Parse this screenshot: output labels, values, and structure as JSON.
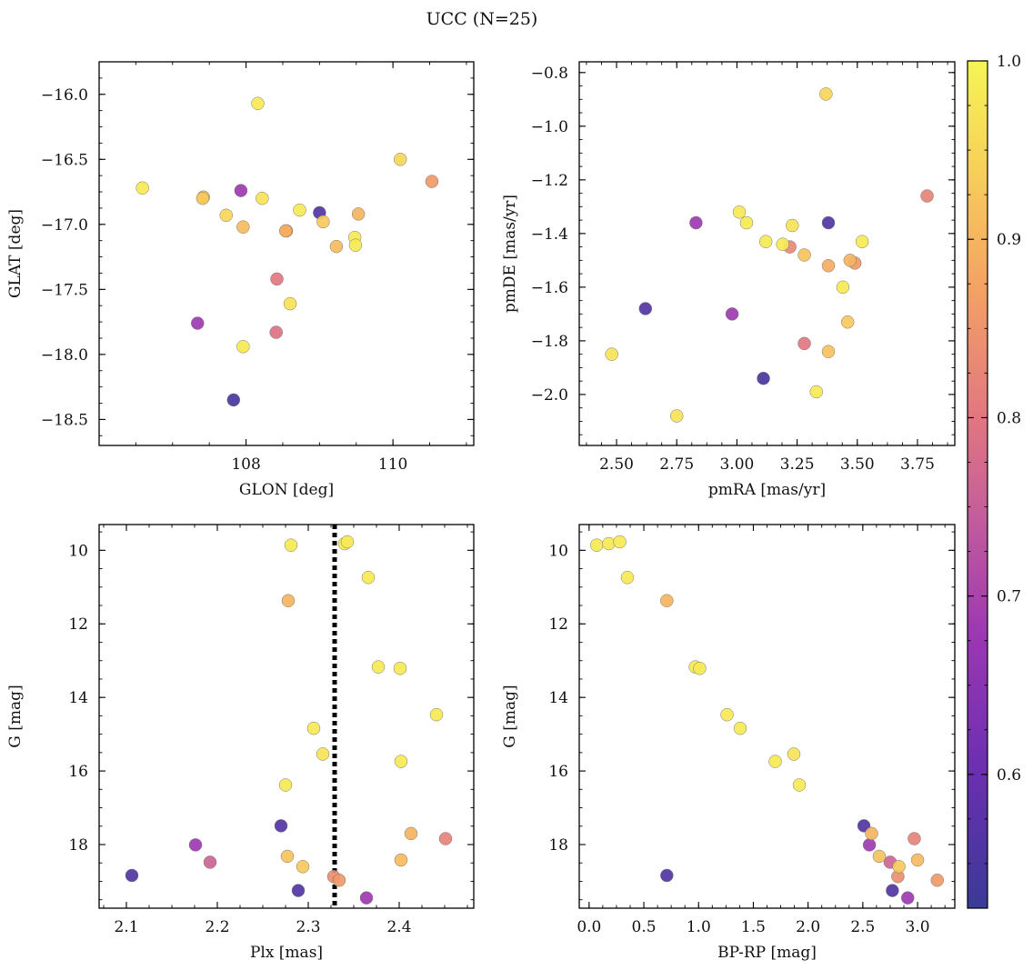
{
  "figure_title": "UCC (N=25)",
  "colorbar": {
    "min": 0.525,
    "max": 1.0,
    "ticks": [
      0.6,
      0.7,
      0.8,
      0.9,
      1.0
    ],
    "tick_labels": [
      "0.6",
      "0.7",
      "0.8",
      "0.9",
      "1.0"
    ],
    "colormap": "plasma"
  },
  "chart_data": [
    {
      "type": "scatter",
      "xlabel": "GLON [deg]",
      "ylabel": "GLAT [deg]",
      "xlim": [
        106.0,
        111.1
      ],
      "ylim": [
        -18.7,
        -15.75
      ],
      "x_ticks": [
        108,
        110
      ],
      "x_tick_labels": [
        "108",
        "110"
      ],
      "y_ticks": [
        -16.0,
        -16.5,
        -17.0,
        -17.5,
        -18.0,
        -18.5
      ],
      "y_tick_labels": [
        "−16.0",
        "−16.5",
        "−17.0",
        "−17.5",
        "−18.0",
        "−18.5"
      ],
      "points": [
        {
          "x": 108.16,
          "y": -16.07,
          "p": 0.98
        },
        {
          "x": 106.59,
          "y": -16.72,
          "p": 0.98
        },
        {
          "x": 107.41,
          "y": -16.8,
          "p": 0.93
        },
        {
          "x": 107.93,
          "y": -16.74,
          "p": 0.68
        },
        {
          "x": 108.22,
          "y": -16.8,
          "p": 0.97
        },
        {
          "x": 107.73,
          "y": -16.93,
          "p": 0.95
        },
        {
          "x": 107.96,
          "y": -17.02,
          "p": 0.91
        },
        {
          "x": 108.54,
          "y": -17.05,
          "p": 0.89
        },
        {
          "x": 108.73,
          "y": -16.89,
          "p": 0.98
        },
        {
          "x": 109.0,
          "y": -16.91,
          "p": 0.56
        },
        {
          "x": 109.05,
          "y": -16.98,
          "p": 0.93
        },
        {
          "x": 109.23,
          "y": -17.17,
          "p": 0.91
        },
        {
          "x": 109.53,
          "y": -16.92,
          "p": 0.9
        },
        {
          "x": 109.48,
          "y": -17.1,
          "p": 0.98
        },
        {
          "x": 109.49,
          "y": -17.16,
          "p": 0.98
        },
        {
          "x": 110.53,
          "y": -16.67,
          "p": 0.86
        },
        {
          "x": 108.42,
          "y": -17.42,
          "p": 0.8
        },
        {
          "x": 108.6,
          "y": -17.61,
          "p": 0.97
        },
        {
          "x": 107.34,
          "y": -17.76,
          "p": 0.68
        },
        {
          "x": 108.41,
          "y": -17.83,
          "p": 0.79
        },
        {
          "x": 107.96,
          "y": -17.94,
          "p": 0.98
        },
        {
          "x": 107.83,
          "y": -18.35,
          "p": 0.55
        },
        {
          "x": 110.1,
          "y": -16.5,
          "p": 0.95
        },
        {
          "x": 108.55,
          "y": -17.05,
          "p": 0.88
        },
        {
          "x": 107.42,
          "y": -16.79,
          "p": 0.92
        }
      ]
    },
    {
      "type": "scatter",
      "xlabel": "pmRA [mas/yr]",
      "ylabel": "pmDE [mas/yr]",
      "xlim": [
        2.345,
        3.905
      ],
      "ylim": [
        -2.19,
        -0.76
      ],
      "x_ticks": [
        2.5,
        2.75,
        3.0,
        3.25,
        3.5,
        3.75
      ],
      "x_tick_labels": [
        "2.50",
        "2.75",
        "3.00",
        "3.25",
        "3.50",
        "3.75"
      ],
      "y_ticks": [
        -0.8,
        -1.0,
        -1.2,
        -1.4,
        -1.6,
        -1.8,
        -2.0
      ],
      "y_tick_labels": [
        "−0.8",
        "−1.0",
        "−1.2",
        "−1.4",
        "−1.6",
        "−1.8",
        "−2.0"
      ],
      "points": [
        {
          "x": 3.37,
          "y": -0.88,
          "p": 0.95
        },
        {
          "x": 3.79,
          "y": -1.26,
          "p": 0.82
        },
        {
          "x": 2.83,
          "y": -1.36,
          "p": 0.68
        },
        {
          "x": 3.38,
          "y": -1.36,
          "p": 0.56
        },
        {
          "x": 3.01,
          "y": -1.32,
          "p": 0.98
        },
        {
          "x": 3.04,
          "y": -1.36,
          "p": 0.98
        },
        {
          "x": 3.23,
          "y": -1.37,
          "p": 0.97
        },
        {
          "x": 3.12,
          "y": -1.43,
          "p": 0.98
        },
        {
          "x": 3.19,
          "y": -1.44,
          "p": 0.98
        },
        {
          "x": 3.22,
          "y": -1.45,
          "p": 0.83
        },
        {
          "x": 3.28,
          "y": -1.48,
          "p": 0.92
        },
        {
          "x": 3.52,
          "y": -1.43,
          "p": 0.98
        },
        {
          "x": 3.38,
          "y": -1.52,
          "p": 0.89
        },
        {
          "x": 3.47,
          "y": -1.5,
          "p": 0.9
        },
        {
          "x": 3.49,
          "y": -1.51,
          "p": 0.86
        },
        {
          "x": 3.44,
          "y": -1.6,
          "p": 0.98
        },
        {
          "x": 2.62,
          "y": -1.68,
          "p": 0.56
        },
        {
          "x": 2.98,
          "y": -1.7,
          "p": 0.68
        },
        {
          "x": 3.46,
          "y": -1.73,
          "p": 0.93
        },
        {
          "x": 3.28,
          "y": -1.81,
          "p": 0.8
        },
        {
          "x": 3.38,
          "y": -1.84,
          "p": 0.92
        },
        {
          "x": 2.48,
          "y": -1.85,
          "p": 0.97
        },
        {
          "x": 3.11,
          "y": -1.94,
          "p": 0.55
        },
        {
          "x": 3.33,
          "y": -1.99,
          "p": 0.98
        },
        {
          "x": 2.75,
          "y": -2.08,
          "p": 0.97
        }
      ]
    },
    {
      "type": "scatter",
      "xlabel": "Plx [mas]",
      "ylabel": "G [mag]",
      "xlim": [
        2.07,
        2.482
      ],
      "ylim": [
        19.73,
        9.3
      ],
      "x_ticks": [
        2.1,
        2.2,
        2.3,
        2.4
      ],
      "x_tick_labels": [
        "2.1",
        "2.2",
        "2.3",
        "2.4"
      ],
      "y_ticks": [
        10,
        12,
        14,
        16,
        18
      ],
      "y_tick_labels": [
        "10",
        "12",
        "14",
        "16",
        "18"
      ],
      "vline": 2.329,
      "points": [
        {
          "x": 2.281,
          "y": 9.86,
          "p": 0.98
        },
        {
          "x": 2.34,
          "y": 9.82,
          "p": 0.98
        },
        {
          "x": 2.343,
          "y": 9.77,
          "p": 0.98
        },
        {
          "x": 2.366,
          "y": 10.74,
          "p": 0.98
        },
        {
          "x": 2.278,
          "y": 11.37,
          "p": 0.9
        },
        {
          "x": 2.377,
          "y": 13.17,
          "p": 0.98
        },
        {
          "x": 2.401,
          "y": 13.21,
          "p": 0.98
        },
        {
          "x": 2.441,
          "y": 14.47,
          "p": 0.98
        },
        {
          "x": 2.306,
          "y": 14.84,
          "p": 0.98
        },
        {
          "x": 2.316,
          "y": 15.54,
          "p": 0.97
        },
        {
          "x": 2.402,
          "y": 15.74,
          "p": 0.98
        },
        {
          "x": 2.275,
          "y": 16.38,
          "p": 0.98
        },
        {
          "x": 2.27,
          "y": 17.49,
          "p": 0.56
        },
        {
          "x": 2.413,
          "y": 17.7,
          "p": 0.9
        },
        {
          "x": 2.451,
          "y": 17.84,
          "p": 0.82
        },
        {
          "x": 2.176,
          "y": 18.01,
          "p": 0.68
        },
        {
          "x": 2.277,
          "y": 18.32,
          "p": 0.92
        },
        {
          "x": 2.402,
          "y": 18.42,
          "p": 0.91
        },
        {
          "x": 2.192,
          "y": 18.48,
          "p": 0.76
        },
        {
          "x": 2.294,
          "y": 18.6,
          "p": 0.93
        },
        {
          "x": 2.106,
          "y": 18.84,
          "p": 0.56
        },
        {
          "x": 2.328,
          "y": 18.87,
          "p": 0.84
        },
        {
          "x": 2.334,
          "y": 18.97,
          "p": 0.86
        },
        {
          "x": 2.289,
          "y": 19.25,
          "p": 0.56
        },
        {
          "x": 2.364,
          "y": 19.45,
          "p": 0.68
        }
      ]
    },
    {
      "type": "scatter",
      "xlabel": "BP-RP [mag]",
      "ylabel": "G [mag]",
      "xlim": [
        -0.09,
        3.34
      ],
      "ylim": [
        19.73,
        9.3
      ],
      "x_ticks": [
        0.0,
        0.5,
        1.0,
        1.5,
        2.0,
        2.5,
        3.0
      ],
      "x_tick_labels": [
        "0.0",
        "0.5",
        "1.0",
        "1.5",
        "2.0",
        "2.5",
        "3.0"
      ],
      "y_ticks": [
        10,
        12,
        14,
        16,
        18
      ],
      "y_tick_labels": [
        "10",
        "12",
        "14",
        "16",
        "18"
      ],
      "points": [
        {
          "x": 0.07,
          "y": 9.86,
          "p": 0.98
        },
        {
          "x": 0.18,
          "y": 9.82,
          "p": 0.98
        },
        {
          "x": 0.28,
          "y": 9.77,
          "p": 0.98
        },
        {
          "x": 0.35,
          "y": 10.74,
          "p": 0.98
        },
        {
          "x": 0.71,
          "y": 11.37,
          "p": 0.9
        },
        {
          "x": 0.97,
          "y": 13.17,
          "p": 0.98
        },
        {
          "x": 1.01,
          "y": 13.21,
          "p": 0.98
        },
        {
          "x": 1.26,
          "y": 14.47,
          "p": 0.98
        },
        {
          "x": 1.38,
          "y": 14.84,
          "p": 0.98
        },
        {
          "x": 1.87,
          "y": 15.54,
          "p": 0.97
        },
        {
          "x": 1.7,
          "y": 15.74,
          "p": 0.98
        },
        {
          "x": 1.92,
          "y": 16.38,
          "p": 0.98
        },
        {
          "x": 2.51,
          "y": 17.49,
          "p": 0.56
        },
        {
          "x": 2.58,
          "y": 17.7,
          "p": 0.9
        },
        {
          "x": 2.97,
          "y": 17.84,
          "p": 0.82
        },
        {
          "x": 2.56,
          "y": 18.01,
          "p": 0.68
        },
        {
          "x": 2.65,
          "y": 18.32,
          "p": 0.92
        },
        {
          "x": 3.0,
          "y": 18.42,
          "p": 0.91
        },
        {
          "x": 2.75,
          "y": 18.48,
          "p": 0.76
        },
        {
          "x": 2.83,
          "y": 18.6,
          "p": 0.93
        },
        {
          "x": 0.71,
          "y": 18.84,
          "p": 0.56
        },
        {
          "x": 2.82,
          "y": 18.87,
          "p": 0.84
        },
        {
          "x": 3.18,
          "y": 18.97,
          "p": 0.86
        },
        {
          "x": 2.77,
          "y": 19.25,
          "p": 0.56
        },
        {
          "x": 2.91,
          "y": 19.45,
          "p": 0.68
        }
      ]
    }
  ]
}
